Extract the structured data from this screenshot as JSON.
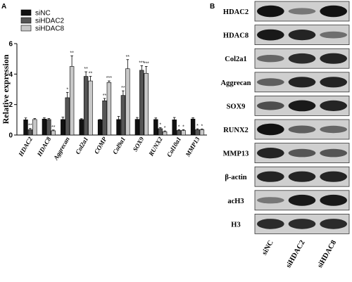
{
  "panel_a": {
    "label": "A"
  },
  "panel_b": {
    "label": "B",
    "rows": [
      "HDAC2",
      "HDAC8",
      "Col2a1",
      "Aggrecan",
      "SOX9",
      "RUNX2",
      "MMP13",
      "β-actin",
      "acH3",
      "H3"
    ],
    "lanes": [
      "siNC",
      "siHDAC2",
      "siHDAC8"
    ],
    "band_intensity": [
      [
        0.95,
        0.35,
        0.95
      ],
      [
        0.9,
        0.85,
        0.4
      ],
      [
        0.45,
        0.8,
        0.85
      ],
      [
        0.5,
        0.85,
        0.85
      ],
      [
        0.6,
        0.9,
        0.85
      ],
      [
        0.95,
        0.5,
        0.45
      ],
      [
        0.85,
        0.55,
        0.55
      ],
      [
        0.85,
        0.85,
        0.85
      ],
      [
        0.35,
        0.9,
        0.9
      ],
      [
        0.8,
        0.8,
        0.8
      ]
    ]
  },
  "chart_data": {
    "type": "bar",
    "title": "",
    "xlabel": "",
    "ylabel": "Relative expression",
    "ylim": [
      0,
      6
    ],
    "yticks": [
      "0",
      "2",
      "4",
      "6"
    ],
    "categories": [
      "HDAC2",
      "HDAC8",
      "Aggrecan",
      "Col2a1",
      "COMP",
      "Col9a1",
      "SOX9",
      "RUNX2",
      "Col10a1",
      "MMP13"
    ],
    "series": [
      {
        "name": "siNC",
        "color": "#111111",
        "values": [
          1.0,
          1.05,
          1.02,
          1.02,
          1.0,
          1.02,
          1.03,
          1.02,
          1.0,
          1.05
        ],
        "errors": [
          0.12,
          0.08,
          0.15,
          0.05,
          0.02,
          0.2,
          0.12,
          0.1,
          0.15,
          0.08
        ]
      },
      {
        "name": "siHDAC2",
        "color": "#555555",
        "values": [
          0.35,
          1.02,
          2.45,
          3.85,
          2.25,
          2.6,
          4.25,
          0.42,
          0.3,
          0.35
        ],
        "errors": [
          0.08,
          0.06,
          0.35,
          0.3,
          0.15,
          0.3,
          0.3,
          0.06,
          0.05,
          0.06
        ]
      },
      {
        "name": "siHDAC8",
        "color": "#c8c8c8",
        "values": [
          1.02,
          0.28,
          4.5,
          3.55,
          3.45,
          4.35,
          4.05,
          0.22,
          0.3,
          0.35
        ],
        "errors": [
          0.06,
          0.05,
          0.7,
          0.3,
          0.1,
          0.6,
          0.45,
          0.05,
          0.05,
          0.05
        ]
      }
    ],
    "significance": [
      [
        "",
        "**",
        ""
      ],
      [
        "",
        "",
        "**"
      ],
      [
        "",
        "*",
        "**"
      ],
      [
        "",
        "**",
        "**"
      ],
      [
        "",
        "**",
        "***"
      ],
      [
        "",
        "**",
        "**"
      ],
      [
        "",
        "***",
        "***"
      ],
      [
        "",
        "*",
        "*"
      ],
      [
        "",
        "*",
        "*"
      ],
      [
        "",
        "*",
        "*"
      ]
    ],
    "legend": "top-left"
  }
}
